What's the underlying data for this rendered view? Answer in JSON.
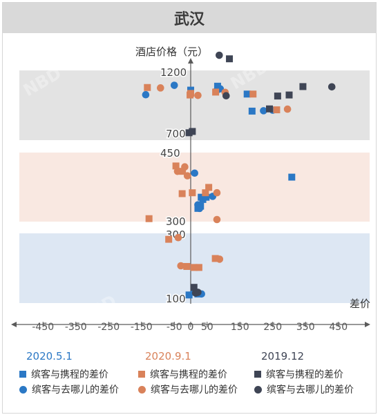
{
  "title": "武汉",
  "chart_data": {
    "type": "scatter",
    "ylabel": "酒店价格（元）",
    "xlabel": "差价",
    "xlim": [
      -450,
      450
    ],
    "x_ticks": [
      "-450",
      "-350",
      "-250",
      "-150",
      "-50",
      "0",
      "50",
      "150",
      "250",
      "350",
      "450"
    ],
    "y_labels": [
      "1200",
      "700",
      "450",
      "300",
      "300",
      "100"
    ],
    "y_axis_note": "broken axis: three bands (700–1200, 300–450, 100–300)",
    "grid": false,
    "series": [
      {
        "group": "2020.5.1",
        "name": "缤客与携程的差价",
        "marker": "square",
        "color": "#2b78c5",
        "points": [
          [
            0,
            1055
          ],
          [
            82,
            1085
          ],
          [
            172,
            1025
          ],
          [
            187,
            895
          ],
          [
            308,
            395
          ],
          [
            32,
            350
          ],
          [
            37,
            345
          ],
          [
            47,
            350
          ],
          [
            22,
            325
          ],
          [
            30,
            330
          ],
          [
            -5,
            112
          ],
          [
            10,
            120
          ],
          [
            22,
            115
          ]
        ]
      },
      {
        "group": "2020.5.1",
        "name": "缤客与去哪儿的差价",
        "marker": "circle",
        "color": "#2b78c5",
        "points": [
          [
            -50,
            1092
          ],
          [
            -137,
            1020
          ],
          [
            78,
            1048
          ],
          [
            90,
            1065
          ],
          [
            222,
            898
          ],
          [
            250,
            902
          ],
          [
            12,
            404
          ],
          [
            67,
            352
          ],
          [
            22,
            333
          ],
          [
            27,
            325
          ],
          [
            33,
            115
          ],
          [
            17,
            120
          ]
        ]
      },
      {
        "group": "2020.9.1",
        "name": "缤客与携程的差价",
        "marker": "square",
        "color": "#d9825a",
        "points": [
          [
            -132,
            1075
          ],
          [
            0,
            1030
          ],
          [
            -2,
            1018
          ],
          [
            76,
            1040
          ],
          [
            190,
            1025
          ],
          [
            262,
            905
          ],
          [
            -45,
            420
          ],
          [
            -25,
            408
          ],
          [
            55,
            372
          ],
          [
            5,
            360
          ],
          [
            45,
            360
          ],
          [
            -26,
            358
          ],
          [
            -127,
            302
          ],
          [
            -67,
            280
          ],
          [
            -12,
            198
          ],
          [
            75,
            222
          ],
          [
            10,
            195
          ],
          [
            25,
            195
          ]
        ]
      },
      {
        "group": "2020.9.1",
        "name": "缤客与去哪儿的差价",
        "marker": "circle",
        "color": "#d9825a",
        "points": [
          [
            -92,
            1072
          ],
          [
            22,
            1015
          ],
          [
            105,
            1038
          ],
          [
            295,
            910
          ],
          [
            -18,
            418
          ],
          [
            -40,
            408
          ],
          [
            -10,
            398
          ],
          [
            80,
            360
          ],
          [
            80,
            300
          ],
          [
            -38,
            285
          ],
          [
            88,
            220
          ],
          [
            -30,
            200
          ]
        ]
      },
      {
        "group": "2019.12",
        "name": "缤客与携程的差价",
        "marker": "square",
        "color": "#3f4555",
        "points": [
          [
            -5,
            730
          ],
          [
            5,
            740
          ],
          [
            342,
            1082
          ],
          [
            265,
            1010
          ],
          [
            300,
            1018
          ],
          [
            118,
            660
          ],
          [
            240,
            912
          ],
          [
            10,
            135
          ]
        ]
      },
      {
        "group": "2019.12",
        "name": "缤客与去哪儿的差价",
        "marker": "circle",
        "color": "#3f4555",
        "points": [
          [
            430,
            1080
          ],
          [
            108,
            1012
          ],
          [
            87,
            668
          ],
          [
            15,
            118
          ],
          [
            22,
            120
          ]
        ]
      }
    ]
  },
  "legend": {
    "groups": [
      {
        "title": "2020.5.1",
        "color": "#2b78c5",
        "items": [
          "缤客与携程的差价",
          "缤客与去哪儿的差价"
        ]
      },
      {
        "title": "2020.9.1",
        "color": "#d9825a",
        "items": [
          "缤客与携程的差价",
          "缤客与去哪儿的差价"
        ]
      },
      {
        "title": "2019.12",
        "color": "#3f4555",
        "items": [
          "缤客与携程的差价",
          "缤客与去哪儿的差价"
        ]
      }
    ]
  },
  "colors": {
    "band_top": "#e3e3e3",
    "band_mid": "#f9e8e1",
    "band_bot": "#dde7f3",
    "axis": "#5a5a5a",
    "header": "#d9d9d9"
  },
  "watermark": "NBD 每日经济新闻"
}
